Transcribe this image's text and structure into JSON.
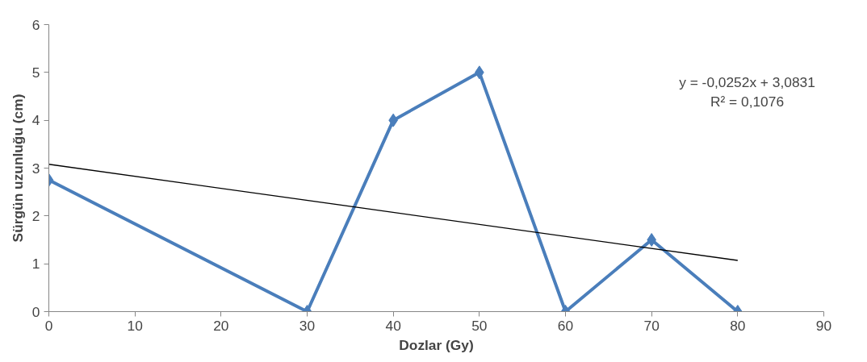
{
  "chart_data": {
    "type": "line",
    "xlabel": "Dozlar (Gy)",
    "ylabel": "Sürgün uzunluğu (cm)",
    "x": [
      0,
      30,
      40,
      50,
      60,
      70,
      80
    ],
    "series": [
      {
        "color": "#4a7ebb",
        "values": [
          2.75,
          0,
          4,
          5,
          0,
          1.5,
          0
        ]
      },
      {
        "type": "line",
        "color": "#000000",
        "x": [
          0,
          80
        ],
        "values": [
          3.08,
          1.07
        ],
        "marker": "none"
      }
    ],
    "xlim": [
      0,
      90
    ],
    "xticks": [
      0,
      10,
      20,
      30,
      40,
      50,
      60,
      70,
      80,
      90
    ],
    "ylim": [
      0,
      6
    ],
    "yticks": [
      0,
      1,
      2,
      3,
      4,
      5,
      6
    ],
    "marker": "diamond",
    "grid": false,
    "annotations": [
      "y = -0,0252x + 3,0831",
      "R² = 0,1076"
    ]
  }
}
